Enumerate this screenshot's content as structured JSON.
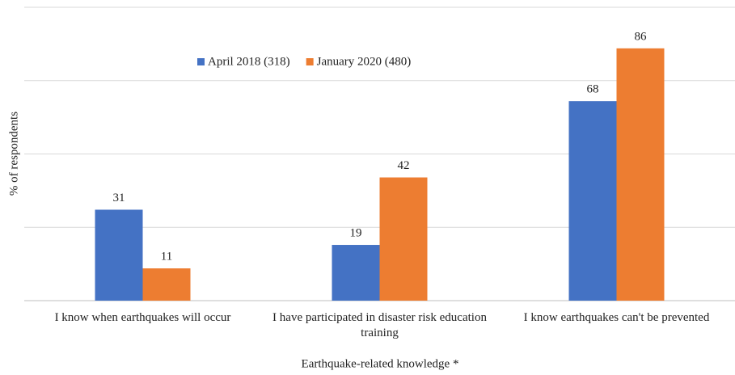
{
  "chart_data": {
    "type": "bar",
    "categories": [
      "I know when earthquakes will occur",
      "I have participated in disaster risk education training",
      "I know earthquakes can't be prevented"
    ],
    "series": [
      {
        "name": "April 2018 (318)",
        "color": "#4472c4",
        "values": [
          31,
          19,
          68
        ]
      },
      {
        "name": "January 2020 (480)",
        "color": "#ed7d31",
        "values": [
          11,
          42,
          86
        ]
      }
    ],
    "ylabel": "% of respondents",
    "xlabel": "Earthquake-related knowledge *",
    "ylim": [
      0,
      100
    ],
    "yticks": [
      0,
      25,
      50,
      75,
      100
    ],
    "grid": true,
    "legend": "top"
  }
}
